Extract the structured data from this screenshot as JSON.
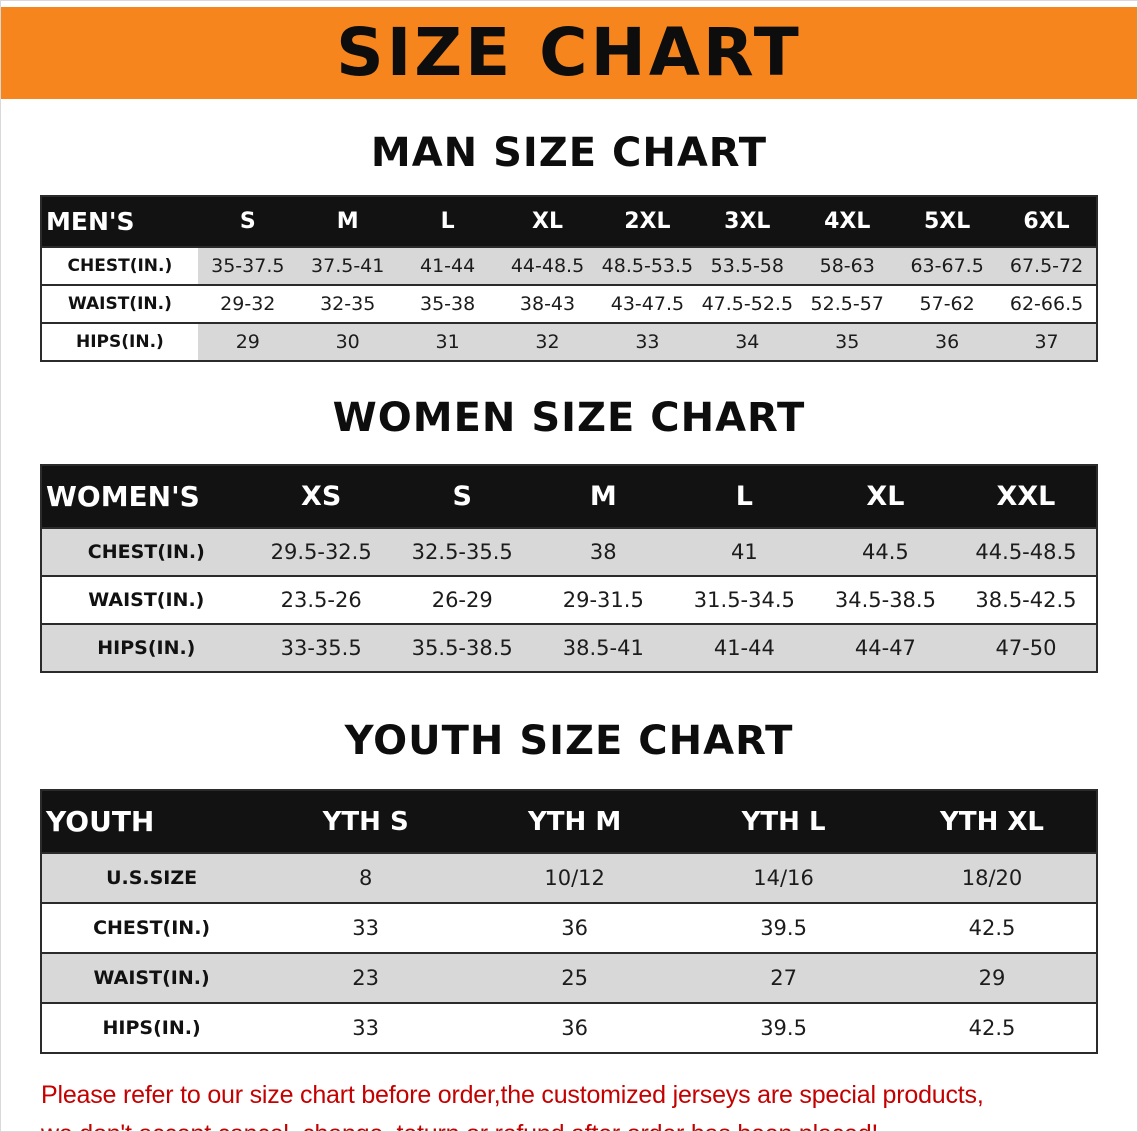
{
  "banner": {
    "title": "SIZE CHART"
  },
  "colors": {
    "banner_orange": "#f5851c",
    "header_black": "#121212",
    "row_gray": "#d8d8d8",
    "disclaimer_red": "#c40000"
  },
  "sections": [
    {
      "id": "men",
      "heading": "MAN SIZE CHART",
      "table": {
        "header": [
          "MEN'S",
          "S",
          "M",
          "L",
          "XL",
          "2XL",
          "3XL",
          "4XL",
          "5XL",
          "6XL"
        ],
        "rows": [
          [
            "CHEST(IN.)",
            "35-37.5",
            "37.5-41",
            "41-44",
            "44-48.5",
            "48.5-53.5",
            "53.5-58",
            "58-63",
            "63-67.5",
            "67.5-72"
          ],
          [
            "WAIST(IN.)",
            "29-32",
            "32-35",
            "35-38",
            "38-43",
            "43-47.5",
            "47.5-52.5",
            "52.5-57",
            "57-62",
            "62-66.5"
          ],
          [
            "HIPS(IN.)",
            "29",
            "30",
            "31",
            "32",
            "33",
            "34",
            "35",
            "36",
            "37"
          ]
        ]
      }
    },
    {
      "id": "women",
      "heading": "WOMEN SIZE CHART",
      "table": {
        "header": [
          "WOMEN'S",
          "XS",
          "S",
          "M",
          "L",
          "XL",
          "XXL"
        ],
        "rows": [
          [
            "CHEST(IN.)",
            "29.5-32.5",
            "32.5-35.5",
            "38",
            "41",
            "44.5",
            "44.5-48.5"
          ],
          [
            "WAIST(IN.)",
            "23.5-26",
            "26-29",
            "29-31.5",
            "31.5-34.5",
            "34.5-38.5",
            "38.5-42.5"
          ],
          [
            "HIPS(IN.)",
            "33-35.5",
            "35.5-38.5",
            "38.5-41",
            "41-44",
            "44-47",
            "47-50"
          ]
        ]
      }
    },
    {
      "id": "youth",
      "heading": "YOUTH SIZE CHART",
      "table": {
        "header": [
          "YOUTH",
          "YTH S",
          "YTH M",
          "YTH L",
          "YTH XL"
        ],
        "rows": [
          [
            "U.S.SIZE",
            "8",
            "10/12",
            "14/16",
            "18/20"
          ],
          [
            "CHEST(IN.)",
            "33",
            "36",
            "39.5",
            "42.5"
          ],
          [
            "WAIST(IN.)",
            "23",
            "25",
            "27",
            "29"
          ],
          [
            "HIPS(IN.)",
            "33",
            "36",
            "39.5",
            "42.5"
          ]
        ]
      }
    }
  ],
  "disclaimer": {
    "lines": [
      "Please refer to our size chart before order,the customized jerseys are special products,",
      "we don't accept cancel, change, teturn or refund after order has been placed!"
    ]
  }
}
